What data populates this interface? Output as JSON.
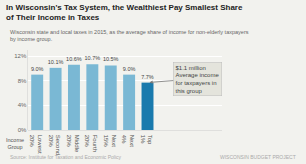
{
  "chart_data": {
    "type": "bar",
    "title": "In Wisconsin's Tax System, the Wealthiest Pay Smallest Share\nof Their Income in Taxes",
    "subtitle": "Wisconsin state and local taxes in 2015, as the average share of income for non-elderly taxpayers\nby income group.",
    "xlabel": "Income\nGroup",
    "categories": [
      "Lowest\n20%",
      "Second\n20%",
      "Middle\n20%",
      "Fourth\n20%",
      "Next\n15%",
      "Next\n4%",
      "Top\n1%"
    ],
    "values": [
      9.0,
      10.1,
      10.6,
      10.7,
      10.5,
      9.0,
      7.7
    ],
    "value_labels": [
      "9.0%",
      "10.1%",
      "10.6%",
      "10.7%",
      "10.5%",
      "9.0%",
      "7.7%"
    ],
    "data_labels": true,
    "colors": [
      "#7ab8d4",
      "#7ab8d4",
      "#7ab8d4",
      "#7ab8d4",
      "#7ab8d4",
      "#7ab8d4",
      "#1a7aad"
    ],
    "ylim": [
      0,
      13
    ],
    "yticks": [
      {
        "value": 0,
        "label": "0%"
      },
      {
        "value": 4,
        "label": "4%"
      },
      {
        "value": 8,
        "label": "8%"
      },
      {
        "value": 12,
        "label": "12%"
      }
    ],
    "grid": true,
    "annotations": [
      {
        "text": "$1.1 million\nAverage income\nfor taxpayers in\nthis group",
        "category": "Top\n1%"
      },
      {
        "text": "Source: Institute for Taxation and Economic Policy"
      },
      {
        "text": "WISCONSIN BUDGET PROJECT"
      }
    ]
  }
}
